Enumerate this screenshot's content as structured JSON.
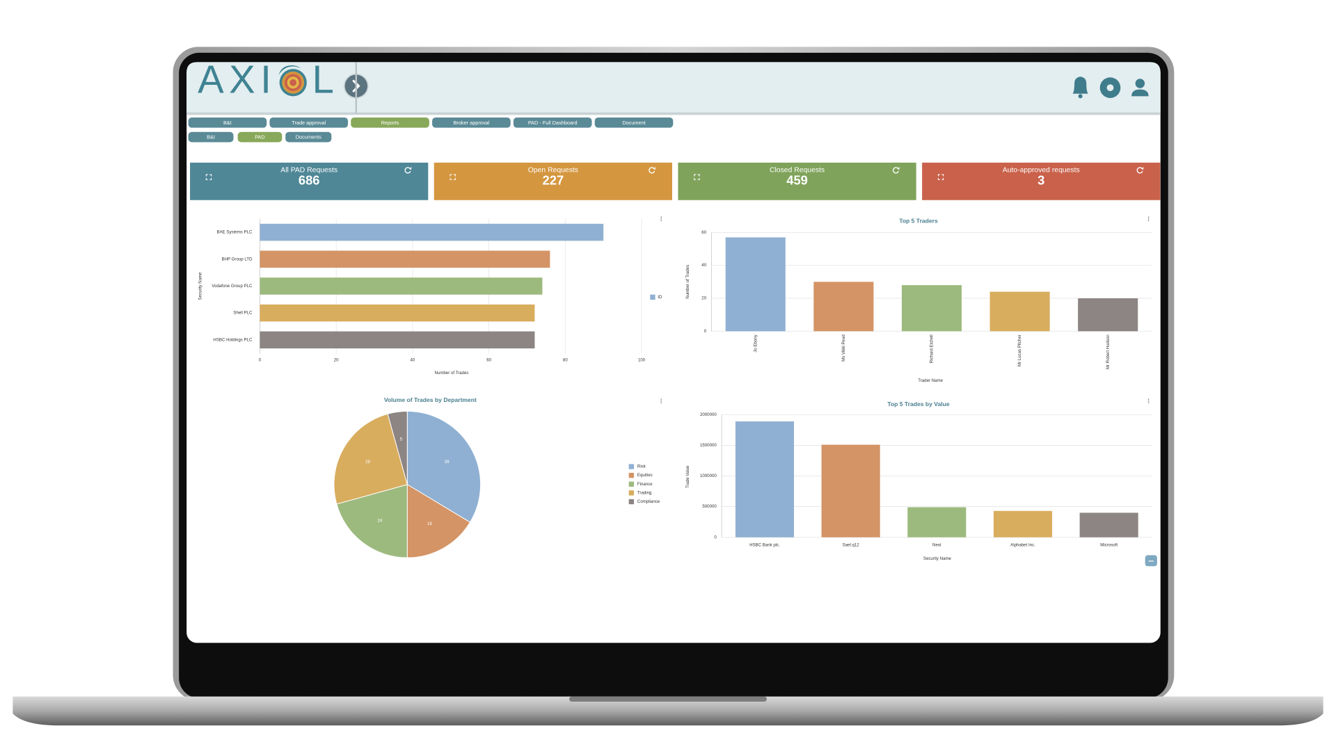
{
  "header": {
    "logo": "AXIOL"
  },
  "nav": {
    "row1": [
      "B&I",
      "Trade approval",
      "Reports",
      "Broker approval",
      "PAD - Full Dashboard",
      "Document"
    ],
    "row2": [
      "B&I",
      "PAD",
      "Documents"
    ]
  },
  "kpis": [
    {
      "label": "All PAD Requests",
      "value": 686,
      "color": "#4f8796"
    },
    {
      "label": "Open Requests",
      "value": 227,
      "color": "#d4963f"
    },
    {
      "label": "Closed Requests",
      "value": 459,
      "color": "#7fa35a"
    },
    {
      "label": "Auto-approved requests",
      "value": 3,
      "color": "#c9614b"
    }
  ],
  "chart_data": [
    {
      "type": "hbar",
      "categories": [
        "BAE Systems PLC",
        "BHP Group LTD",
        "Vodafone Group PLC",
        "Shell PLC",
        "HSBC Holdings PLC"
      ],
      "series": [
        {
          "name": "ID",
          "colors": [
            "#8fb0d2",
            "#d49466",
            "#9dba7e",
            "#d8ad5e",
            "#8c8583"
          ],
          "values": [
            90,
            76,
            74,
            72,
            72
          ]
        }
      ],
      "xlim": [
        0,
        100
      ],
      "xticks": [
        0,
        20,
        40,
        60,
        80,
        100
      ],
      "xlabel": "Number of Trades",
      "ylabel": "Security Name",
      "grid": true,
      "legend": "right"
    },
    {
      "type": "bar",
      "title": "Top 5 Traders",
      "categories": [
        "Jo Ebony",
        "Ms Vikki Pead",
        "Richard Etchell",
        "Mr Lucas Pitcher",
        "Mr Robert Hudson"
      ],
      "values": [
        57,
        30,
        28,
        24,
        20
      ],
      "colors": [
        "#8fb0d2",
        "#d49466",
        "#9dba7e",
        "#d8ad5e",
        "#8c8583"
      ],
      "ylim": [
        0,
        60
      ],
      "yticks": [
        0,
        20,
        40,
        60
      ],
      "xlabel": "Trader Name",
      "ylabel": "Number of Trades",
      "grid": true
    },
    {
      "type": "pie",
      "title": "Volume of Trades by Department",
      "categories": [
        "Risk",
        "Equities",
        "Finance",
        "Trading",
        "Compliance"
      ],
      "values": [
        39,
        19,
        24,
        29,
        5
      ],
      "colors": [
        "#8fb0d2",
        "#d49466",
        "#9dba7e",
        "#d8ad5e",
        "#8c8583"
      ],
      "legend": "right"
    },
    {
      "type": "bar",
      "title": "Top 5 Trades by Value",
      "categories": [
        "HSBC Bank plc.",
        "Sael.q12",
        "Next",
        "Alphabet Inc.",
        "Microsoft"
      ],
      "values": [
        1890000,
        1510000,
        490000,
        430000,
        400000
      ],
      "colors": [
        "#8fb0d2",
        "#d49466",
        "#9dba7e",
        "#d8ad5e",
        "#8c8583"
      ],
      "ylim": [
        0,
        2000000
      ],
      "yticks": [
        0,
        500000,
        1000000,
        1500000,
        2000000
      ],
      "xlabel": "Security Name",
      "ylabel": "Trade Value",
      "grid": true
    }
  ]
}
